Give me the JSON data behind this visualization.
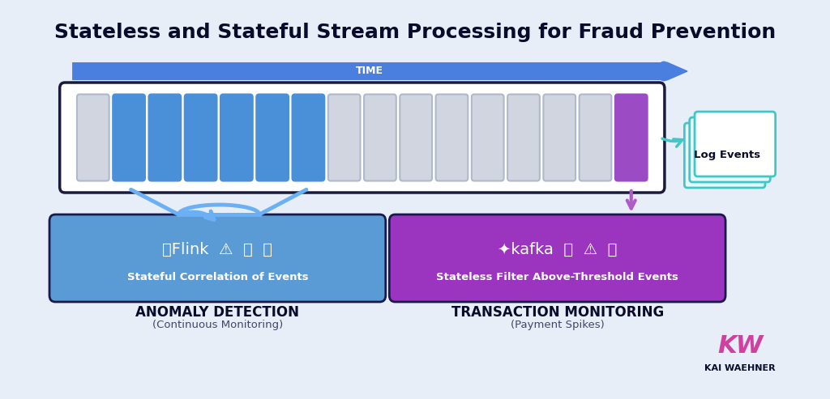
{
  "title": "Stateless and Stateful Stream Processing for Fraud Prevention",
  "bg_color": "#e8eef8",
  "title_color": "#0a0a2a",
  "time_bar_color": "#4a7fe0",
  "time_text": "TIME",
  "stream_box_bg": "#ffffff",
  "stream_box_border": "#1a1a3a",
  "blue_block_color": "#4a90d9",
  "purple_block_color": "#9b4cc4",
  "grey_block_color": "#d0d5e0",
  "num_blocks": 16,
  "blue_indices": [
    1,
    2,
    3,
    4,
    5,
    6
  ],
  "purple_indices": [
    15
  ],
  "flink_box_color": "#5b9bd5",
  "kafka_box_color": "#9b35c0",
  "flink_label": "Stateful Correlation of Events",
  "kafka_label": "Stateless Filter Above-Threshold Events",
  "anomaly_title": "ANOMALY DETECTION",
  "anomaly_subtitle": "(Continuous Monitoring)",
  "tx_title": "TRANSACTION MONITORING",
  "tx_subtitle": "(Payment Spikes)",
  "log_events_text": "Log Events",
  "kw_text": "KAI WAEHNER",
  "arrow_blue_color": "#6bb0f5",
  "arrow_purple_color": "#b05ac8",
  "arrow_teal_color": "#40c8c8",
  "flink_icon": "⚑Flink ⚠ 📊 🔍",
  "kafka_icon": "kafka 👤 ⚠ ∿"
}
